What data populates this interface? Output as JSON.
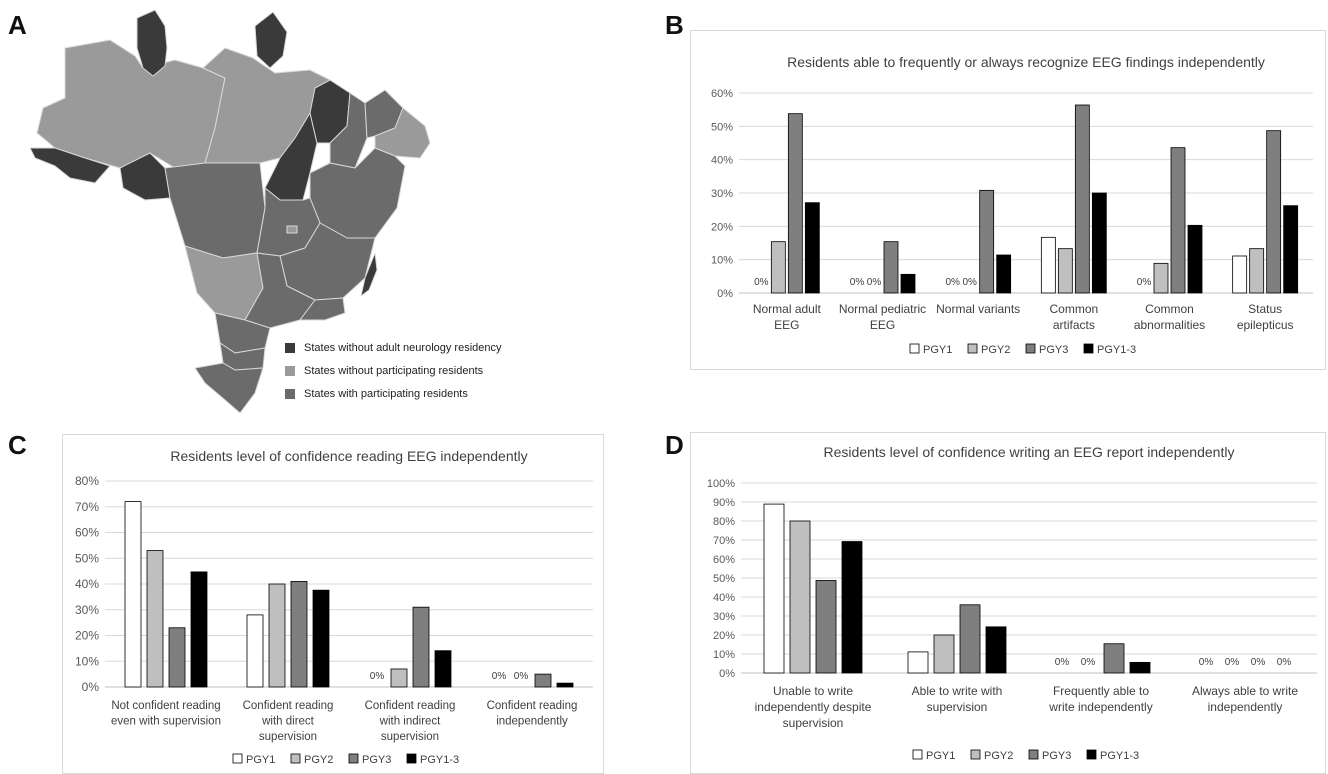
{
  "panels": {
    "a": "A",
    "b": "B",
    "c": "C",
    "d": "D"
  },
  "colors": {
    "PGY1": "#ffffff",
    "PGY2": "#bfbfbf",
    "PGY3": "#7f7f7f",
    "PGY1-3": "#000000",
    "map_no_residency": "#3a3a3a",
    "map_without_participating": "#9a9a9a",
    "map_with_participating": "#6b6b6b"
  },
  "map_legend": [
    {
      "label": "States without adult neurology residency",
      "color": "#3a3a3a"
    },
    {
      "label": "States without participating residents",
      "color": "#9a9a9a"
    },
    {
      "label": "States with participating residents",
      "color": "#6b6b6b"
    }
  ],
  "chart_data": [
    {
      "id": "B",
      "type": "bar",
      "title": "Residents able to frequently or always recognize EEG findings independently",
      "categories": [
        [
          "Normal adult",
          "EEG"
        ],
        [
          "Normal pediatric",
          "EEG"
        ],
        [
          "Normal variants"
        ],
        [
          "Common",
          "artifacts"
        ],
        [
          "Common",
          "abnormalities"
        ],
        [
          "Status",
          "epilepticus"
        ]
      ],
      "series": [
        {
          "name": "PGY1",
          "values": [
            0,
            0,
            0,
            16.7,
            0,
            11.1
          ]
        },
        {
          "name": "PGY2",
          "values": [
            15.4,
            0,
            0,
            13.3,
            8.9,
            13.3
          ]
        },
        {
          "name": "PGY3",
          "values": [
            53.8,
            15.4,
            30.8,
            56.4,
            43.6,
            48.7
          ]
        },
        {
          "name": "PGY1-3",
          "values": [
            27.1,
            5.6,
            11.4,
            30.0,
            20.3,
            26.2
          ]
        }
      ],
      "ylim": [
        0,
        60
      ],
      "yticks": [
        "0%",
        "10%",
        "20%",
        "30%",
        "40%",
        "50%",
        "60%"
      ],
      "zero_label": "0%",
      "legend": "bottom",
      "grid": true
    },
    {
      "id": "C",
      "type": "bar",
      "title": "Residents level of confidence reading EEG independently",
      "categories": [
        [
          "Not confident reading",
          "even with supervision"
        ],
        [
          "Confident reading",
          "with direct",
          "supervision"
        ],
        [
          "Confident reading",
          "with indirect",
          "supervision"
        ],
        [
          "Confident reading",
          "independently"
        ]
      ],
      "series": [
        {
          "name": "PGY1",
          "values": [
            72,
            28,
            0,
            0
          ]
        },
        {
          "name": "PGY2",
          "values": [
            53,
            40,
            7,
            0
          ]
        },
        {
          "name": "PGY3",
          "values": [
            23,
            41,
            31,
            5
          ]
        },
        {
          "name": "PGY1-3",
          "values": [
            44.7,
            37.6,
            14.1,
            1.5
          ]
        }
      ],
      "ylim": [
        0,
        80
      ],
      "yticks": [
        "0%",
        "10%",
        "20%",
        "30%",
        "40%",
        "50%",
        "60%",
        "70%",
        "80%"
      ],
      "zero_label": "0%",
      "legend": "bottom",
      "grid": true
    },
    {
      "id": "D",
      "type": "bar",
      "title": "Residents level of confidence writing an EEG report independently",
      "categories": [
        [
          "Unable to write",
          "independently despite",
          "supervision"
        ],
        [
          "Able to write with",
          "supervision"
        ],
        [
          "Frequently able to",
          "write independently"
        ],
        [
          "Always able to write",
          "independently"
        ]
      ],
      "series": [
        {
          "name": "PGY1",
          "values": [
            88.9,
            11.1,
            0,
            0
          ]
        },
        {
          "name": "PGY2",
          "values": [
            80,
            20,
            0,
            0
          ]
        },
        {
          "name": "PGY3",
          "values": [
            48.7,
            35.9,
            15.4,
            0
          ]
        },
        {
          "name": "PGY1-3",
          "values": [
            69.2,
            24.3,
            5.6,
            0
          ]
        }
      ],
      "ylim": [
        0,
        100
      ],
      "yticks": [
        "0%",
        "10%",
        "20%",
        "30%",
        "40%",
        "50%",
        "60%",
        "70%",
        "80%",
        "90%",
        "100%"
      ],
      "zero_label": "0%",
      "legend": "bottom",
      "grid": true
    }
  ]
}
